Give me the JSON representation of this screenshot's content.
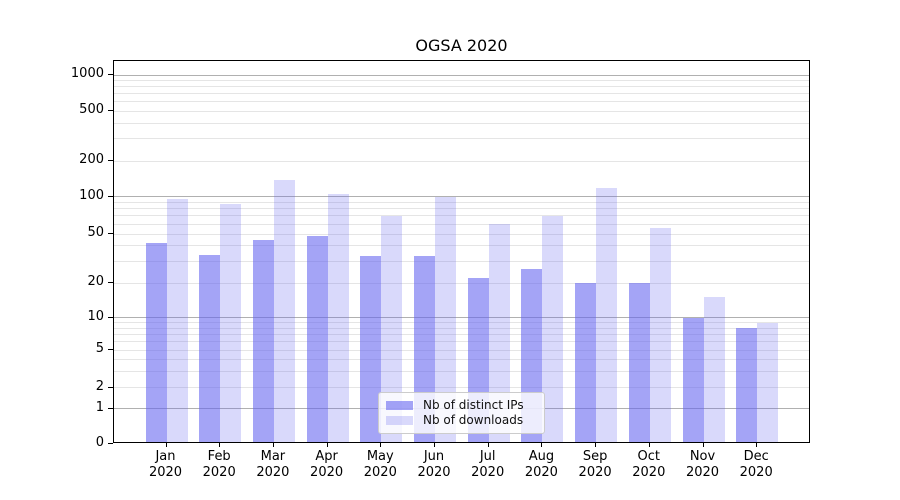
{
  "title": "OGSA 2020",
  "chart_data": {
    "type": "bar",
    "title": "OGSA 2020",
    "categories": [
      "Jan 2020",
      "Feb 2020",
      "Mar 2020",
      "Apr 2020",
      "May 2020",
      "Jun 2020",
      "Jul 2020",
      "Aug 2020",
      "Sep 2020",
      "Oct 2020",
      "Nov 2020",
      "Dec 2020"
    ],
    "series": [
      {
        "name": "Nb of distinct IPs",
        "color": "rgba(98,98,240,0.58)",
        "values": [
          42,
          34,
          45,
          48,
          33,
          33,
          22,
          26,
          20,
          20,
          10,
          8
        ]
      },
      {
        "name": "Nb of downloads",
        "color": "rgba(98,98,240,0.24)",
        "values": [
          95,
          87,
          137,
          105,
          70,
          100,
          60,
          70,
          118,
          56,
          15,
          9
        ]
      }
    ],
    "xlabel": "",
    "ylabel": "",
    "y_scale": "log-like (symlog, axis includes 0)",
    "yticks": [
      0,
      1,
      2,
      5,
      10,
      20,
      50,
      100,
      200,
      500,
      1000
    ],
    "ylim": [
      0,
      1300
    ],
    "grid": "horizontal major + minor",
    "legend_position": "lower center"
  },
  "colors": {
    "bar_dark": "rgba(98,98,240,0.58)",
    "bar_light": "rgba(98,98,240,0.24)",
    "grid_major": "#b0b0b0",
    "grid_minor": "#e5e5e5",
    "background": "#ffffff",
    "text": "#000000"
  }
}
